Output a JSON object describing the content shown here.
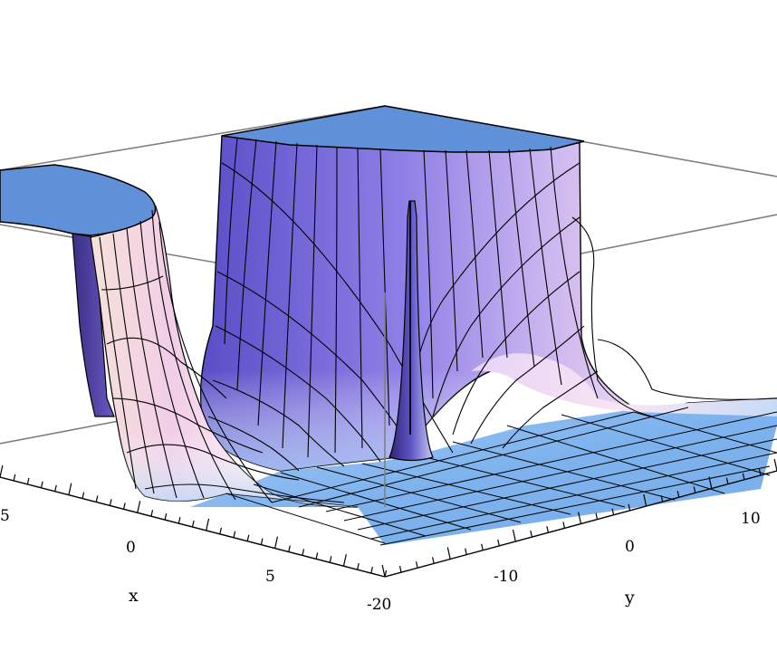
{
  "chart_data": {
    "type": "surface3d",
    "title": "",
    "x_axis": {
      "label": "x",
      "ticks": [
        "5",
        "0",
        "5"
      ]
    },
    "y_axis": {
      "label": "y",
      "ticks": [
        "-20",
        "-10",
        "0",
        "10"
      ]
    },
    "z_axis": {
      "label": "",
      "ticks": []
    },
    "surface_features": [
      {
        "name": "plateau-left"
      },
      {
        "name": "plateau-back"
      },
      {
        "name": "thin-spike-center"
      },
      {
        "name": "ridge-right"
      },
      {
        "name": "flat-floor"
      }
    ],
    "bounding_box": true,
    "mesh_lines": true,
    "colors": {
      "cap": "#6090d8",
      "floor": "#7ab2ee",
      "wall_dark": "#5a48b8",
      "wall_light": "#f3d8ee",
      "mesh": "#000000",
      "box": "#808080"
    }
  }
}
